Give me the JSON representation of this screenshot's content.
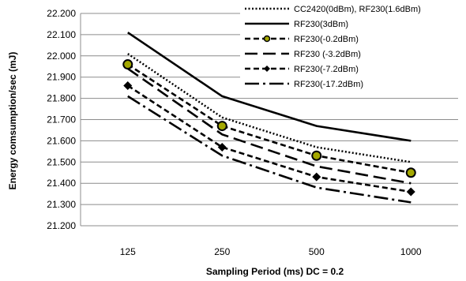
{
  "chart_data": {
    "type": "line",
    "title": "",
    "xlabel": "Sampling Period (ms) DC = 0.2",
    "ylabel": "Energy comsumption/sec (mJ)",
    "categories": [
      "125",
      "250",
      "500",
      "1000"
    ],
    "ylim": [
      21.2,
      22.2
    ],
    "ytick_step": 0.1,
    "ytick_labels": [
      "21.200",
      "21.300",
      "21.400",
      "21.500",
      "21.600",
      "21.700",
      "21.800",
      "21.900",
      "22.000",
      "22.100",
      "22.200"
    ],
    "grid": true,
    "legend": "top-right",
    "series": [
      {
        "name": "CC2420(0dBm), RF230(1.6dBm)",
        "values": [
          22.01,
          21.71,
          21.57,
          21.5
        ],
        "style": "dotted",
        "marker": "none",
        "color": "#000000"
      },
      {
        "name": "RF230(3dBm)",
        "values": [
          22.11,
          21.81,
          21.67,
          21.6
        ],
        "style": "solid",
        "marker": "none",
        "color": "#000000"
      },
      {
        "name": "RF230(-0.2dBm)",
        "values": [
          21.96,
          21.67,
          21.53,
          21.45
        ],
        "style": "short-dash",
        "marker": "circle",
        "color": "#000000",
        "marker_fill": "#a4a800"
      },
      {
        "name": "RF230 (-3.2dBm)",
        "values": [
          21.94,
          21.63,
          21.48,
          21.4
        ],
        "style": "long-dash",
        "marker": "none",
        "color": "#000000"
      },
      {
        "name": "RF230(-7.2dBm)",
        "values": [
          21.86,
          21.57,
          21.43,
          21.36
        ],
        "style": "short-dash",
        "marker": "diamond",
        "color": "#000000"
      },
      {
        "name": "RF230(-17.2dBm)",
        "values": [
          21.81,
          21.53,
          21.38,
          21.31
        ],
        "style": "dash-dot",
        "marker": "none",
        "color": "#000000"
      }
    ]
  }
}
